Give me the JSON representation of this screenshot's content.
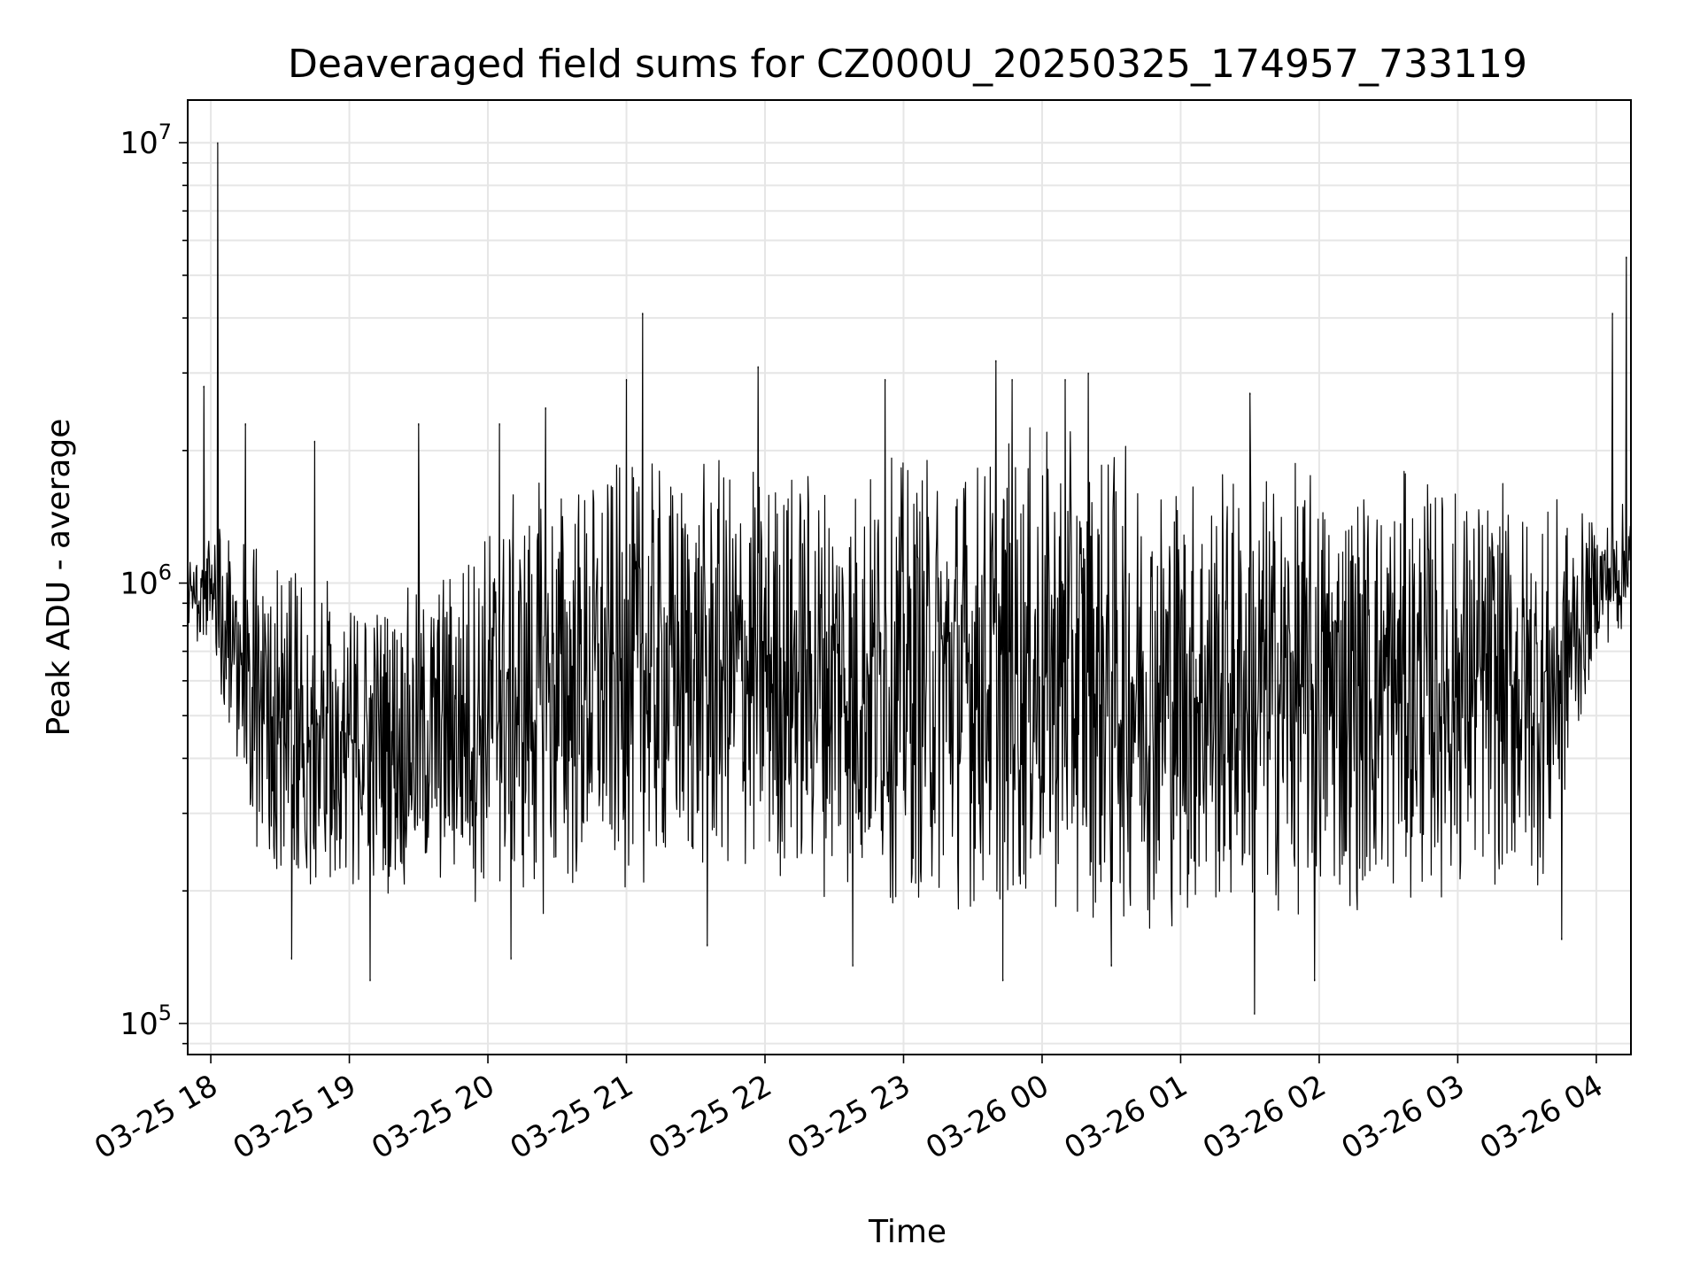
{
  "chart_data": {
    "type": "line",
    "title": "Deaveraged field sums for CZ000U_20250325_174957_733119",
    "xlabel": "Time",
    "ylabel": "Peak ADU - average",
    "yscale": "log",
    "grid": true,
    "line_color": "#000000",
    "grid_color": "#e6e6e6",
    "xlim": [
      "2025-03-25 17:50",
      "2025-03-26 04:15"
    ],
    "ylim": [
      85000,
      12500000
    ],
    "x_ticks": [
      {
        "value": "2025-03-25 18:00",
        "label": "03-25 18"
      },
      {
        "value": "2025-03-25 19:00",
        "label": "03-25 19"
      },
      {
        "value": "2025-03-25 20:00",
        "label": "03-25 20"
      },
      {
        "value": "2025-03-25 21:00",
        "label": "03-25 21"
      },
      {
        "value": "2025-03-25 22:00",
        "label": "03-25 22"
      },
      {
        "value": "2025-03-25 23:00",
        "label": "03-25 23"
      },
      {
        "value": "2025-03-26 00:00",
        "label": "03-26 00"
      },
      {
        "value": "2025-03-26 01:00",
        "label": "03-26 01"
      },
      {
        "value": "2025-03-26 02:00",
        "label": "03-26 02"
      },
      {
        "value": "2025-03-26 03:00",
        "label": "03-26 03"
      },
      {
        "value": "2025-03-26 04:00",
        "label": "03-26 04"
      }
    ],
    "y_ticks": [
      {
        "value": 100000,
        "base": "10",
        "exp": "5"
      },
      {
        "value": 1000000,
        "base": "10",
        "exp": "6"
      },
      {
        "value": 10000000,
        "base": "10",
        "exp": "7"
      }
    ],
    "series": [
      {
        "style": "dense-oscillating",
        "envelope": [
          {
            "x": "2025-03-25 17:50",
            "low": 700000,
            "high": 1200000
          },
          {
            "x": "2025-03-25 18:00",
            "low": 700000,
            "high": 1300000
          },
          {
            "x": "2025-03-25 18:20",
            "low": 220000,
            "high": 1500000
          },
          {
            "x": "2025-03-25 18:40",
            "low": 180000,
            "high": 1200000
          },
          {
            "x": "2025-03-25 19:00",
            "low": 200000,
            "high": 1000000
          },
          {
            "x": "2025-03-25 19:30",
            "low": 190000,
            "high": 1000000
          },
          {
            "x": "2025-03-25 20:00",
            "low": 180000,
            "high": 1500000
          },
          {
            "x": "2025-03-25 20:30",
            "low": 170000,
            "high": 1900000
          },
          {
            "x": "2025-03-25 21:00",
            "low": 200000,
            "high": 1900000
          },
          {
            "x": "2025-03-25 22:00",
            "low": 200000,
            "high": 2000000
          },
          {
            "x": "2025-03-25 23:00",
            "low": 180000,
            "high": 2000000
          },
          {
            "x": "2025-03-26 00:00",
            "low": 170000,
            "high": 2300000
          },
          {
            "x": "2025-03-26 01:00",
            "low": 160000,
            "high": 2000000
          },
          {
            "x": "2025-03-26 02:00",
            "low": 170000,
            "high": 1900000
          },
          {
            "x": "2025-03-26 03:00",
            "low": 190000,
            "high": 1800000
          },
          {
            "x": "2025-03-26 03:40",
            "low": 200000,
            "high": 1600000
          },
          {
            "x": "2025-03-26 04:00",
            "low": 700000,
            "high": 1400000
          },
          {
            "x": "2025-03-26 04:15",
            "low": 750000,
            "high": 1600000
          }
        ],
        "spikes": [
          {
            "x": "2025-03-25 17:57",
            "y": 2800000
          },
          {
            "x": "2025-03-25 18:03",
            "y": 10000000
          },
          {
            "x": "2025-03-25 18:15",
            "y": 2300000
          },
          {
            "x": "2025-03-25 18:45",
            "y": 2100000
          },
          {
            "x": "2025-03-25 19:30",
            "y": 2300000
          },
          {
            "x": "2025-03-25 20:05",
            "y": 2300000
          },
          {
            "x": "2025-03-25 20:25",
            "y": 2500000
          },
          {
            "x": "2025-03-25 21:00",
            "y": 2900000
          },
          {
            "x": "2025-03-25 21:07",
            "y": 4100000
          },
          {
            "x": "2025-03-25 21:57",
            "y": 3100000
          },
          {
            "x": "2025-03-25 22:52",
            "y": 2900000
          },
          {
            "x": "2025-03-25 23:40",
            "y": 3200000
          },
          {
            "x": "2025-03-25 23:47",
            "y": 2900000
          },
          {
            "x": "2025-03-26 00:10",
            "y": 2900000
          },
          {
            "x": "2025-03-26 00:20",
            "y": 3000000
          },
          {
            "x": "2025-03-26 01:30",
            "y": 2700000
          },
          {
            "x": "2025-03-26 04:07",
            "y": 4100000
          },
          {
            "x": "2025-03-26 04:13",
            "y": 5500000
          }
        ],
        "dips": [
          {
            "x": "2025-03-25 18:35",
            "y": 140000
          },
          {
            "x": "2025-03-25 19:09",
            "y": 125000
          },
          {
            "x": "2025-03-25 20:10",
            "y": 140000
          },
          {
            "x": "2025-03-25 21:35",
            "y": 150000
          },
          {
            "x": "2025-03-25 22:38",
            "y": 135000
          },
          {
            "x": "2025-03-25 23:43",
            "y": 125000
          },
          {
            "x": "2025-03-26 00:30",
            "y": 135000
          },
          {
            "x": "2025-03-26 01:32",
            "y": 105000
          },
          {
            "x": "2025-03-26 01:58",
            "y": 125000
          },
          {
            "x": "2025-03-26 03:45",
            "y": 155000
          }
        ]
      }
    ]
  }
}
